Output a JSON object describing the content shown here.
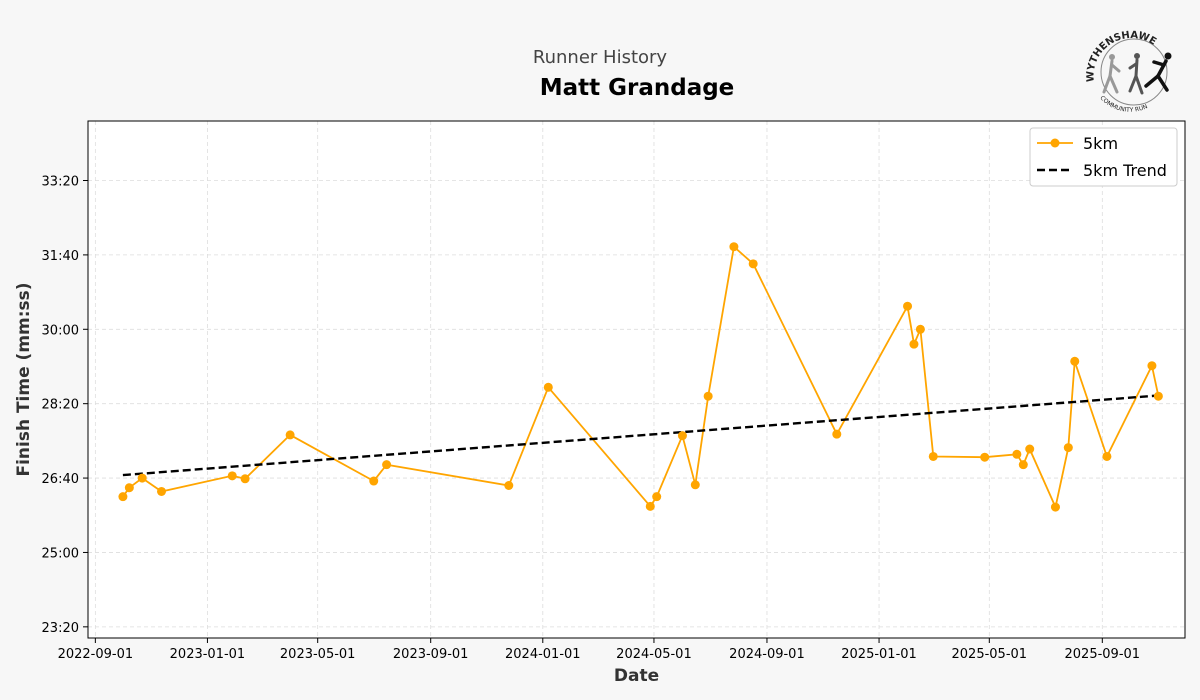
{
  "header": {
    "subtitle": "Runner History",
    "title": "Matt Grandage"
  },
  "logo": {
    "name": "Wythenshawe Community Run logo",
    "text_top": "WYTHENSHAWE",
    "text_bottom": "COMMUNITY RUN"
  },
  "chart_data": {
    "type": "line",
    "title": "Matt Grandage",
    "subtitle": "Runner History",
    "xlabel": "Date",
    "ylabel": "Finish Time (mm:ss)",
    "x_ticks": [
      "2022-09-01",
      "2023-01-01",
      "2023-05-01",
      "2023-09-01",
      "2024-01-01",
      "2024-05-01",
      "2024-09-01",
      "2025-01-01",
      "2025-05-01",
      "2025-09-01"
    ],
    "y_ticks": [
      "23:20",
      "25:00",
      "26:40",
      "28:20",
      "30:00",
      "31:40",
      "33:20"
    ],
    "xlim": [
      "2022-08-24",
      "2025-11-30"
    ],
    "ylim": [
      "23:05",
      "34:40"
    ],
    "grid": true,
    "legend_position": "top-right",
    "colors": {
      "series": "#FFA500",
      "trend": "#000000"
    },
    "series": [
      {
        "name": "5km",
        "style": "line-with-markers",
        "points": [
          {
            "date": "2022-10-01",
            "time": "26:15"
          },
          {
            "date": "2022-10-08",
            "time": "26:27"
          },
          {
            "date": "2022-10-22",
            "time": "26:40"
          },
          {
            "date": "2022-11-12",
            "time": "26:22"
          },
          {
            "date": "2023-01-28",
            "time": "26:43"
          },
          {
            "date": "2023-02-11",
            "time": "26:39"
          },
          {
            "date": "2023-04-01",
            "time": "27:38"
          },
          {
            "date": "2023-07-01",
            "time": "26:36"
          },
          {
            "date": "2023-07-15",
            "time": "26:58"
          },
          {
            "date": "2023-11-25",
            "time": "26:30"
          },
          {
            "date": "2024-01-07",
            "time": "28:42"
          },
          {
            "date": "2024-04-27",
            "time": "26:02"
          },
          {
            "date": "2024-05-04",
            "time": "26:15"
          },
          {
            "date": "2024-06-01",
            "time": "27:37"
          },
          {
            "date": "2024-06-15",
            "time": "26:31"
          },
          {
            "date": "2024-06-29",
            "time": "28:30"
          },
          {
            "date": "2024-07-27",
            "time": "31:51"
          },
          {
            "date": "2024-08-17",
            "time": "31:28"
          },
          {
            "date": "2024-11-16",
            "time": "27:39"
          },
          {
            "date": "2025-02-01",
            "time": "30:31"
          },
          {
            "date": "2025-02-08",
            "time": "29:40"
          },
          {
            "date": "2025-02-15",
            "time": "30:00"
          },
          {
            "date": "2025-03-01",
            "time": "27:09"
          },
          {
            "date": "2025-04-26",
            "time": "27:08"
          },
          {
            "date": "2025-05-31",
            "time": "27:12"
          },
          {
            "date": "2025-06-07",
            "time": "26:58"
          },
          {
            "date": "2025-06-14",
            "time": "27:19"
          },
          {
            "date": "2025-07-12",
            "time": "26:01"
          },
          {
            "date": "2025-07-26",
            "time": "27:21"
          },
          {
            "date": "2025-08-02",
            "time": "29:17"
          },
          {
            "date": "2025-09-06",
            "time": "27:09"
          },
          {
            "date": "2025-10-25",
            "time": "29:11"
          },
          {
            "date": "2025-11-01",
            "time": "28:30"
          }
        ]
      },
      {
        "name": "5km Trend",
        "style": "dashed-line",
        "points": [
          {
            "date": "2022-10-01",
            "time": "26:44"
          },
          {
            "date": "2025-11-01",
            "time": "28:31"
          }
        ]
      }
    ]
  }
}
